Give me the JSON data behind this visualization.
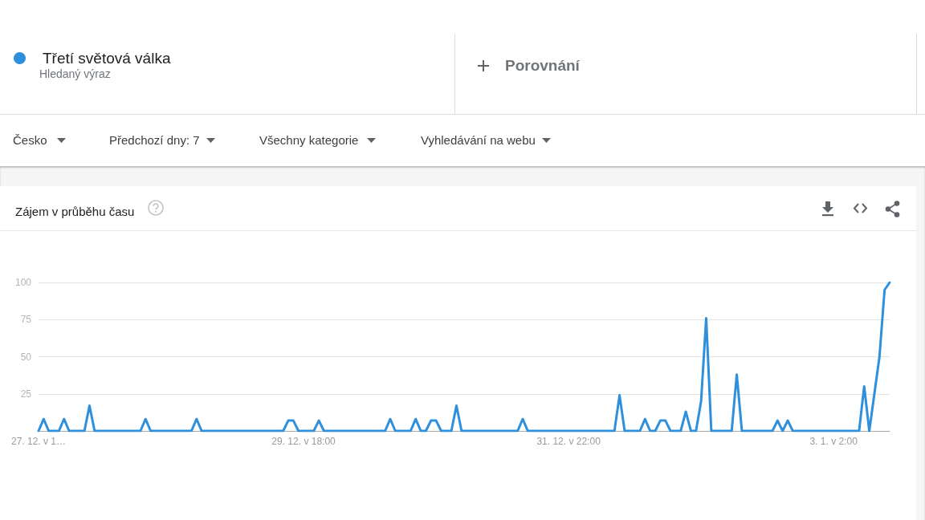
{
  "chart_data": {
    "type": "line",
    "title": "Zájem v průběhu času",
    "annotations": [
      "Hledaný výraz",
      "Porovnání",
      "Česko",
      "Předchozí dny: 7",
      "Všechny kategorie",
      "Vyhledávání na webu"
    ],
    "categories": [
      "27. 12. v 1…",
      null,
      null,
      null,
      null,
      null,
      null,
      null,
      null,
      null,
      null,
      null,
      null,
      null,
      null,
      null,
      null,
      null,
      null,
      null,
      null,
      null,
      null,
      null,
      null,
      null,
      null,
      null,
      null,
      null,
      null,
      null,
      null,
      null,
      null,
      null,
      null,
      null,
      null,
      null,
      null,
      null,
      null,
      null,
      null,
      null,
      null,
      null,
      null,
      null,
      null,
      null,
      "29. 12. v 18:00",
      null,
      null,
      null,
      null,
      null,
      null,
      null,
      null,
      null,
      null,
      null,
      null,
      null,
      null,
      null,
      null,
      null,
      null,
      null,
      null,
      null,
      null,
      null,
      null,
      null,
      null,
      null,
      null,
      null,
      null,
      null,
      null,
      null,
      null,
      null,
      null,
      null,
      null,
      null,
      null,
      null,
      null,
      null,
      null,
      null,
      null,
      null,
      null,
      null,
      null,
      null,
      "31. 12. v 22:00",
      null,
      null,
      null,
      null,
      null,
      null,
      null,
      null,
      null,
      null,
      null,
      null,
      null,
      null,
      null,
      null,
      null,
      null,
      null,
      null,
      null,
      null,
      null,
      null,
      null,
      null,
      null,
      null,
      null,
      null,
      null,
      null,
      null,
      null,
      null,
      null,
      null,
      null,
      null,
      null,
      null,
      null,
      null,
      null,
      null,
      null,
      null,
      null,
      null,
      null,
      null,
      "3. 1. v 2:00",
      null,
      null,
      null,
      null,
      null,
      null,
      null,
      null,
      null,
      null,
      null
    ],
    "series": [
      {
        "name": "Třetí světová válka",
        "color": "#2e90dc",
        "values": [
          0,
          8,
          0,
          0,
          0,
          8,
          0,
          0,
          0,
          0,
          17,
          0,
          0,
          0,
          0,
          0,
          0,
          0,
          0,
          0,
          0,
          8,
          0,
          0,
          0,
          0,
          0,
          0,
          0,
          0,
          0,
          8,
          0,
          0,
          0,
          0,
          0,
          0,
          0,
          0,
          0,
          0,
          0,
          0,
          0,
          0,
          0,
          0,
          0,
          7,
          7,
          0,
          0,
          0,
          0,
          7,
          0,
          0,
          0,
          0,
          0,
          0,
          0,
          0,
          0,
          0,
          0,
          0,
          0,
          8,
          0,
          0,
          0,
          0,
          8,
          0,
          0,
          7,
          7,
          0,
          0,
          0,
          17,
          0,
          0,
          0,
          0,
          0,
          0,
          0,
          0,
          0,
          0,
          0,
          0,
          8,
          0,
          0,
          0,
          0,
          0,
          0,
          0,
          0,
          0,
          0,
          0,
          0,
          0,
          0,
          0,
          0,
          0,
          0,
          24,
          0,
          0,
          0,
          0,
          8,
          0,
          0,
          7,
          7,
          0,
          0,
          0,
          13,
          0,
          0,
          20,
          76,
          0,
          0,
          0,
          0,
          0,
          38,
          0,
          0,
          0,
          0,
          0,
          0,
          0,
          7,
          0,
          7,
          0,
          0,
          0,
          0,
          0,
          0,
          0,
          0,
          0,
          0,
          0,
          0,
          0,
          0,
          30,
          0,
          25,
          50,
          95,
          100
        ]
      }
    ],
    "ylim": [
      0,
      100
    ],
    "yticks": [
      {
        "value": 0,
        "label": null
      },
      25,
      50,
      75,
      100
    ],
    "grid": "y",
    "legend": "top left",
    "marker": "none"
  }
}
